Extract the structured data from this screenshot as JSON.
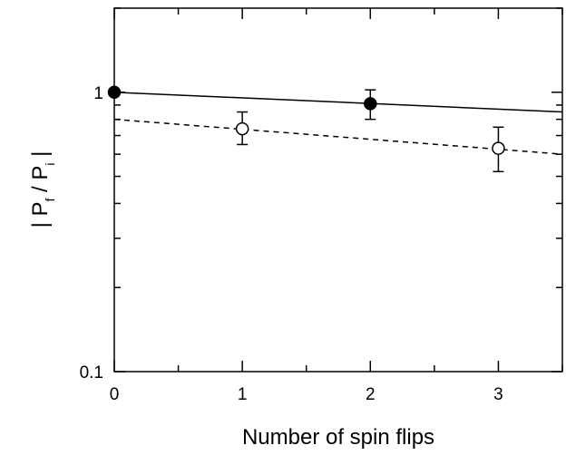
{
  "chart_data": {
    "type": "scatter",
    "title": "",
    "xlabel": "Number of spin flips",
    "ylabel": "|P_f / P_i|",
    "xlim": [
      0,
      3.5
    ],
    "ylim": [
      0.1,
      2
    ],
    "yscale": "log",
    "grid": false,
    "x_ticks": [
      "0",
      "1",
      "2",
      "3"
    ],
    "y_ticks": [
      "0.1",
      "1"
    ],
    "series": [
      {
        "marker": "filled-circle",
        "x": [
          0,
          2
        ],
        "y": [
          1.0,
          0.91
        ],
        "y_err_low": [
          1.0,
          0.8
        ],
        "y_err_high": [
          1.0,
          1.02
        ]
      },
      {
        "marker": "open-circle",
        "x": [
          1,
          3
        ],
        "y": [
          0.74,
          0.63
        ],
        "y_err_low": [
          0.65,
          0.52
        ],
        "y_err_high": [
          0.85,
          0.75
        ]
      }
    ],
    "fits": [
      {
        "style": "solid",
        "x": [
          0,
          3.5
        ],
        "y": [
          1.0,
          0.85
        ]
      },
      {
        "style": "dashed",
        "x": [
          0,
          3.5
        ],
        "y": [
          0.8,
          0.6
        ]
      }
    ],
    "colors": {
      "axis": "#000000",
      "marker": "#000000",
      "background": "#ffffff"
    }
  }
}
